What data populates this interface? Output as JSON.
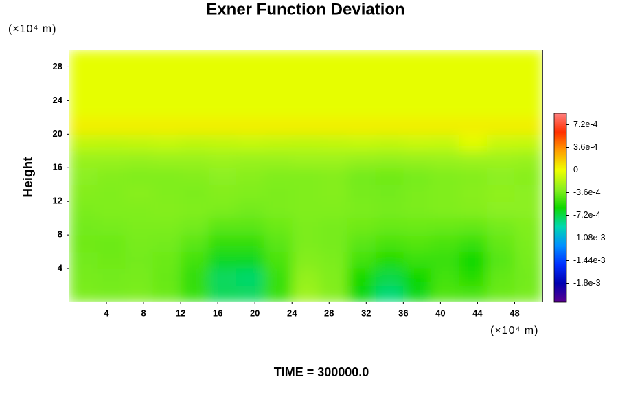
{
  "chart_data": {
    "type": "contour",
    "title": "Exner Function Deviation",
    "ylabel": "Height",
    "y_unit_label": "(×10⁴ m)",
    "x_unit_label": "(×10⁴ m)",
    "footer": "TIME = 300000.0",
    "xlim": [
      0,
      51
    ],
    "ylim": [
      0,
      30
    ],
    "xticks": [
      4,
      8,
      12,
      16,
      20,
      24,
      28,
      32,
      36,
      40,
      44,
      48
    ],
    "yticks": [
      4,
      8,
      12,
      16,
      20,
      24,
      28
    ],
    "clim": [
      -0.0021,
      0.0009
    ],
    "cticks": [
      {
        "value": 0.00072,
        "label": "7.2e-4"
      },
      {
        "value": 0.00036,
        "label": "3.6e-4"
      },
      0,
      {
        "value": -0.00036,
        "label": "-3.6e-4"
      },
      {
        "value": -0.00072,
        "label": "-7.2e-4"
      },
      {
        "value": -0.00108,
        "label": "-1.08e-3"
      },
      {
        "value": -0.00144,
        "label": "-1.44e-3"
      },
      {
        "value": -0.0018,
        "label": "-1.8e-3"
      }
    ],
    "colors": [
      "#5a0090",
      "#0000b0",
      "#0030ff",
      "#0090ff",
      "#00d8b0",
      "#10d800",
      "#8cf020",
      "#f0ff00",
      "#ffa000",
      "#ff3000",
      "#ff8080"
    ],
    "x": [
      1.5,
      4.5,
      7.5,
      10.5,
      13.5,
      16.5,
      19.5,
      22.5,
      25.5,
      28.5,
      31.5,
      34.5,
      37.5,
      40.5,
      43.5,
      46.5,
      49.5
    ],
    "y": [
      1,
      3,
      5,
      7,
      9,
      11,
      13,
      15,
      17,
      19,
      21,
      23,
      25,
      27,
      29
    ],
    "z": [
      [
        -0.00034,
        -0.00035,
        -0.00034,
        -0.00038,
        -0.0005,
        -0.00075,
        -0.00076,
        -0.0005,
        -0.00025,
        -0.00032,
        -0.00062,
        -0.0008,
        -0.00063,
        -0.00045,
        -0.00046,
        -0.00038,
        -0.00035
      ],
      [
        -0.00035,
        -0.00036,
        -0.00035,
        -0.00039,
        -0.00052,
        -0.00076,
        -0.00078,
        -0.0005,
        -0.00028,
        -0.00033,
        -0.00058,
        -0.00072,
        -0.0006,
        -0.00048,
        -0.00055,
        -0.0004,
        -0.00036
      ],
      [
        -0.00036,
        -0.00037,
        -0.00036,
        -0.00038,
        -0.00048,
        -0.00066,
        -0.00066,
        -0.00046,
        -0.00032,
        -0.00034,
        -0.00048,
        -0.00056,
        -0.0005,
        -0.0005,
        -0.0006,
        -0.00043,
        -0.00035
      ],
      [
        -0.00037,
        -0.00038,
        -0.00035,
        -0.00036,
        -0.00042,
        -0.00052,
        -0.00052,
        -0.00042,
        -0.00034,
        -0.00035,
        -0.00042,
        -0.00046,
        -0.00044,
        -0.00046,
        -0.0005,
        -0.0004,
        -0.00034
      ],
      [
        -0.00036,
        -0.00035,
        -0.00034,
        -0.00034,
        -0.00036,
        -0.00042,
        -0.00042,
        -0.00038,
        -0.00034,
        -0.00035,
        -0.00037,
        -0.00039,
        -0.00038,
        -0.00039,
        -0.0004,
        -0.00036,
        -0.00033
      ],
      [
        -0.00034,
        -0.00033,
        -0.00033,
        -0.00032,
        -0.00033,
        -0.00034,
        -0.00036,
        -0.00034,
        -0.00033,
        -0.00033,
        -0.00034,
        -0.00035,
        -0.00034,
        -0.00033,
        -0.00032,
        -0.0003,
        -0.0003
      ],
      [
        -0.00032,
        -0.00033,
        -0.00031,
        -0.00033,
        -0.00034,
        -0.00032,
        -0.00033,
        -0.00034,
        -0.00033,
        -0.00032,
        -0.00035,
        -0.00036,
        -0.00034,
        -0.00033,
        -0.00031,
        -0.00029,
        -0.0003
      ],
      [
        -0.0003,
        -0.00032,
        -0.00033,
        -0.00033,
        -0.00032,
        -0.0003,
        -0.00031,
        -0.00033,
        -0.00033,
        -0.00032,
        -0.00036,
        -0.00037,
        -0.00035,
        -0.00033,
        -0.00032,
        -0.0003,
        -0.00031
      ],
      [
        -0.00026,
        -0.00026,
        -0.00027,
        -0.00026,
        -0.00026,
        -0.00025,
        -0.00026,
        -0.00026,
        -0.00025,
        -0.00025,
        -0.00027,
        -0.00028,
        -0.00027,
        -0.00026,
        -0.00025,
        -0.00025,
        -0.00026
      ],
      [
        -0.00014,
        -0.00015,
        -0.00014,
        -0.00013,
        -0.00015,
        -0.00014,
        -0.00013,
        -0.00014,
        -0.00015,
        -0.00014,
        -0.00013,
        -0.00014,
        -0.00012,
        -0.00013,
        -4e-05,
        -0.00012,
        -0.00013
      ],
      [
        5e-05,
        5e-05,
        5e-05,
        5e-05,
        5e-05,
        5e-05,
        5e-05,
        5e-05,
        5e-05,
        5e-05,
        5e-05,
        5e-05,
        5e-05,
        5e-05,
        5e-05,
        5e-05,
        5e-05
      ],
      [
        -3e-05,
        -3e-05,
        -3e-05,
        -3e-05,
        -3e-05,
        -3e-05,
        -3e-05,
        -3e-05,
        -3e-05,
        -3e-05,
        -3e-05,
        -3e-05,
        -3e-05,
        -3e-05,
        -3e-05,
        -3e-05,
        -3e-05
      ],
      [
        -3e-05,
        -3e-05,
        -3e-05,
        -3e-05,
        -3e-05,
        -3e-05,
        -3e-05,
        -3e-05,
        -3e-05,
        -3e-05,
        -3e-05,
        -3e-05,
        -3e-05,
        -3e-05,
        -3e-05,
        -3e-05,
        -3e-05
      ],
      [
        -3e-05,
        -3e-05,
        -3e-05,
        -3e-05,
        -3e-05,
        -3e-05,
        -3e-05,
        -3e-05,
        -3e-05,
        -3e-05,
        -3e-05,
        -3e-05,
        -3e-05,
        -3e-05,
        -3e-05,
        -3e-05,
        -3e-05
      ],
      [
        -3e-05,
        -3e-05,
        -3e-05,
        -3e-05,
        -3e-05,
        -3e-05,
        -3e-05,
        -3e-05,
        -3e-05,
        -3e-05,
        -3e-05,
        -3e-05,
        -3e-05,
        -3e-05,
        -3e-05,
        -3e-05,
        -3e-05
      ]
    ]
  }
}
